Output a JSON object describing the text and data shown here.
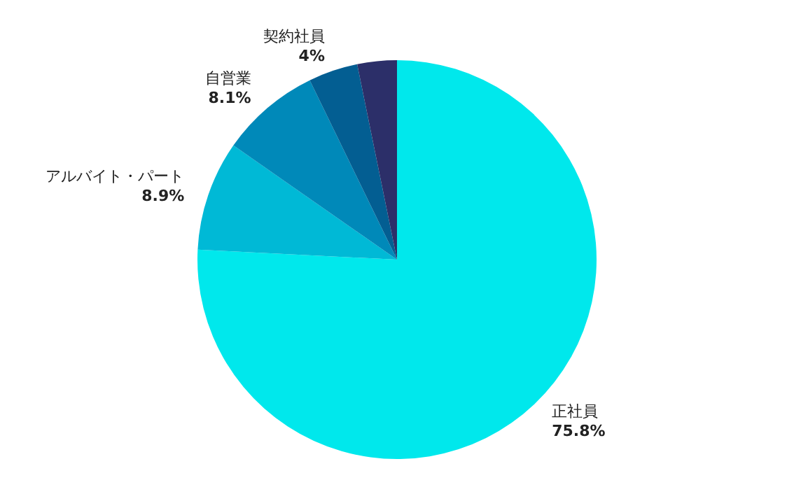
{
  "chart_data": {
    "type": "pie",
    "categories": [
      "正社員",
      "アルバイト・パート",
      "自営業",
      "契約社員",
      null
    ],
    "values": [
      75.8,
      8.9,
      8.1,
      4,
      3.2
    ],
    "colors": [
      "#00e8ec",
      "#00b9d6",
      "#0089b9",
      "#035e92",
      "#2c2f69"
    ],
    "value_labels": [
      "75.8%",
      "8.9%",
      "8.1%",
      "4%",
      null
    ],
    "legend": false
  }
}
